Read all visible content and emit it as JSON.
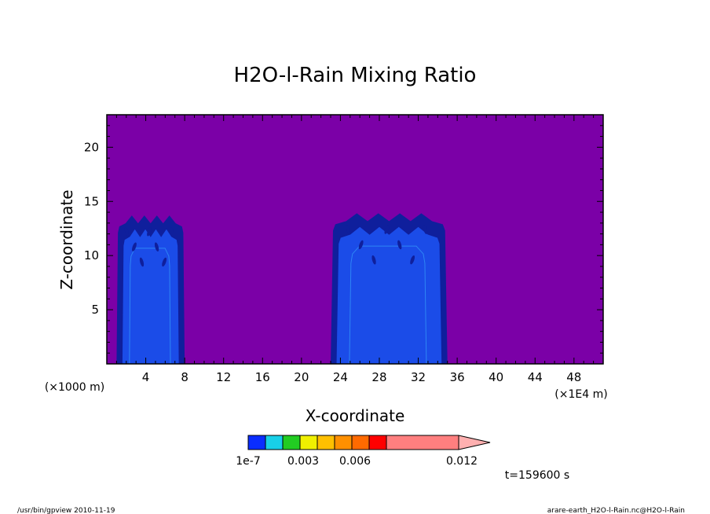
{
  "chart_data": {
    "type": "heatmap",
    "title": "H2O-l-Rain Mixing Ratio",
    "xlabel": "X-coordinate",
    "ylabel": "Z-coordinate",
    "xlim": [
      0,
      51
    ],
    "ylim": [
      0,
      23
    ],
    "x_ticks": [
      4,
      8,
      12,
      16,
      20,
      24,
      28,
      32,
      36,
      40,
      44,
      48
    ],
    "y_ticks": [
      5,
      10,
      15,
      20
    ],
    "x_unit_left": "(×1000 m)",
    "x_unit_right": "(×1E4 m)",
    "background_fill": "#7b00a7",
    "levels": [
      {
        "value": "1e-7",
        "color": "#0f1f9c"
      },
      {
        "value": "",
        "color": "#1b4ce8"
      },
      {
        "value": "",
        "color": "#2e86f5"
      }
    ],
    "cells": [
      {
        "name": "cell-left",
        "x_range": [
          1,
          8
        ],
        "z_top": 13.7
      },
      {
        "name": "cell-right",
        "x_range": [
          23,
          35
        ],
        "z_top": 13.9
      }
    ],
    "colorbar": {
      "labels": [
        "1e-7",
        "0.003",
        "0.006",
        "0.012"
      ],
      "colors": [
        "#0a2dff",
        "#18d0e8",
        "#22cc22",
        "#f0f000",
        "#ffc000",
        "#ff9000",
        "#ff6a00",
        "#ff0000",
        "#ff7f7f",
        "#ffb0b0"
      ]
    },
    "time_label": "t=159600 s"
  },
  "footer": {
    "left": "/usr/bin/gpview   2010-11-19",
    "right": "arare-earth_H2O-l-Rain.nc@H2O-l-Rain"
  }
}
